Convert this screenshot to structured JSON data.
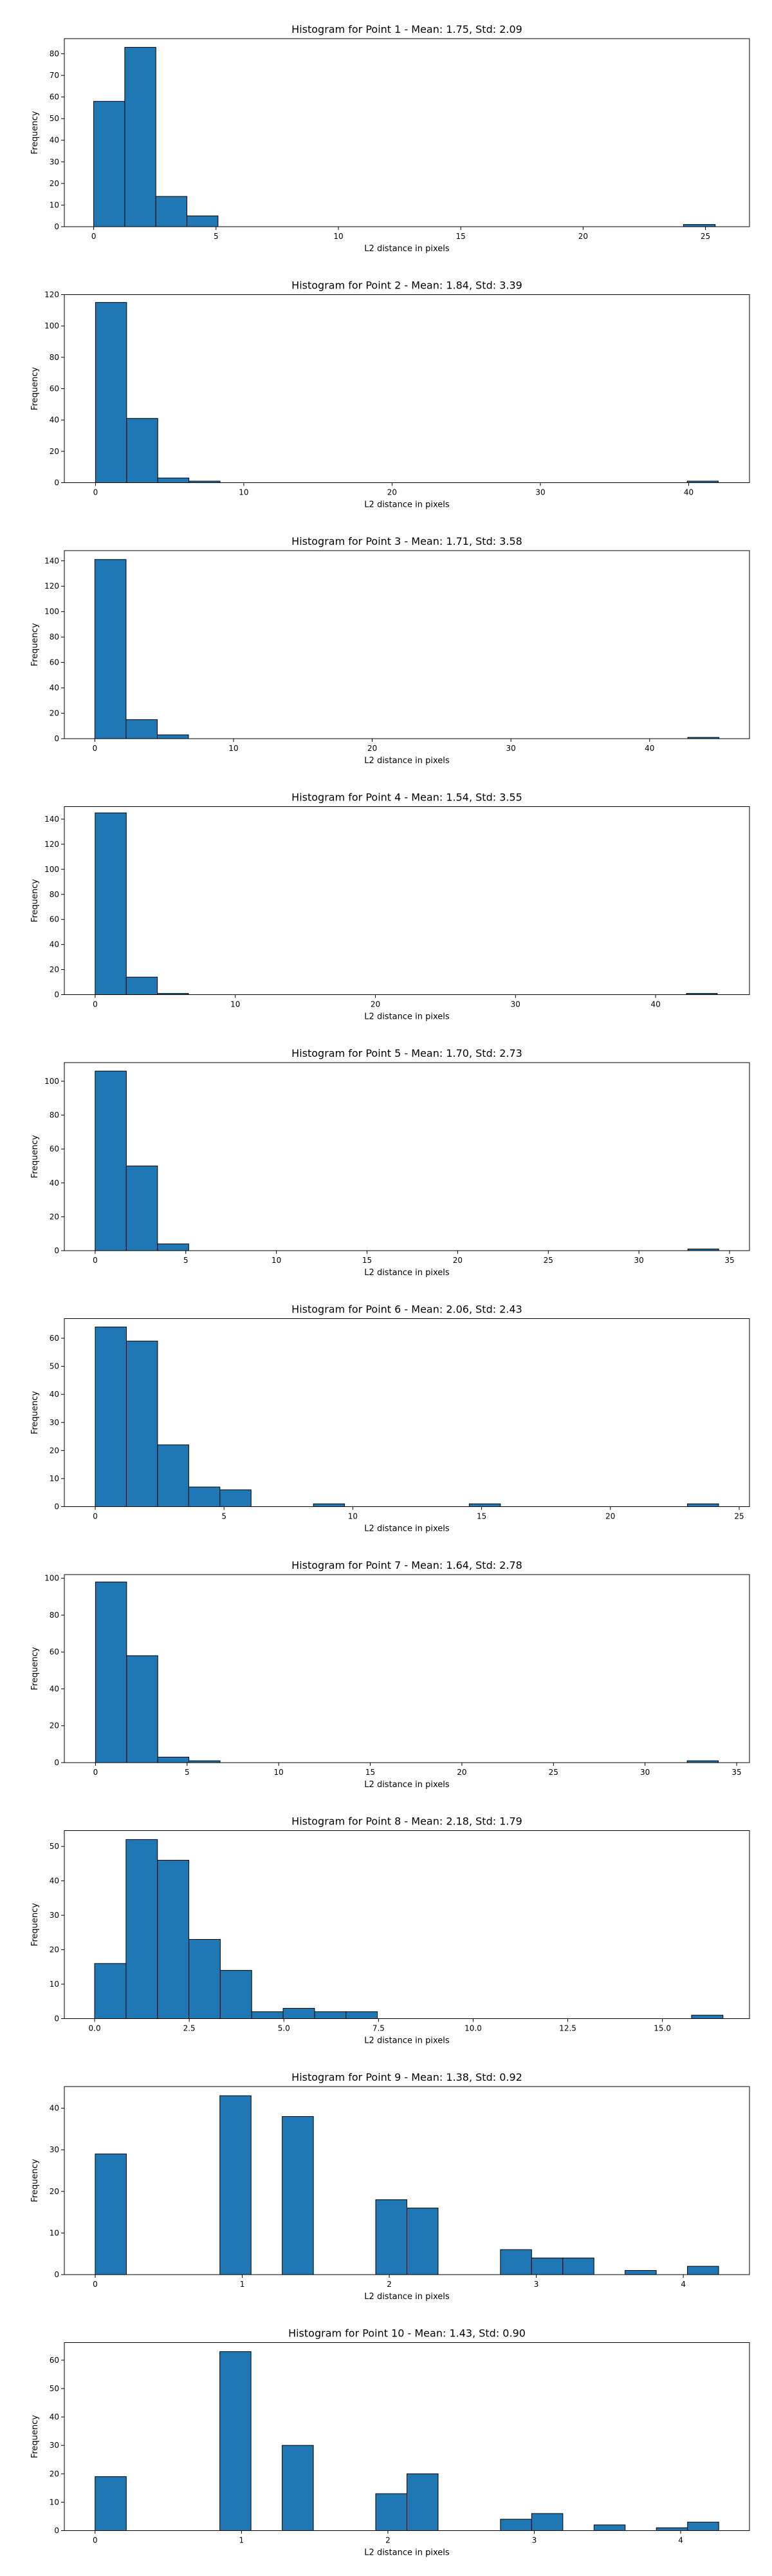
{
  "chart_data": [
    {
      "type": "bar",
      "title": "Histogram for Point 1 - Mean: 1.75, Std: 2.09",
      "xlabel": "L2 distance in pixels",
      "ylabel": "Frequency",
      "xlim": [
        -1.2,
        26.8
      ],
      "ylim": [
        0,
        87
      ],
      "xticks": [
        0,
        5,
        10,
        15,
        20,
        25
      ],
      "xtick_labels": [
        "0",
        "5",
        "10",
        "15",
        "20",
        "25"
      ],
      "yticks": [
        0,
        10,
        20,
        30,
        40,
        50,
        60,
        70,
        80
      ],
      "ytick_labels": [
        "0",
        "10",
        "20",
        "30",
        "40",
        "50",
        "60",
        "70",
        "80"
      ],
      "bins": [
        {
          "x0": 0.0,
          "x1": 1.27,
          "count": 58
        },
        {
          "x0": 1.27,
          "x1": 2.54,
          "count": 83
        },
        {
          "x0": 2.54,
          "x1": 3.81,
          "count": 14
        },
        {
          "x0": 3.81,
          "x1": 5.08,
          "count": 5
        },
        {
          "x0": 24.1,
          "x1": 25.4,
          "count": 1
        }
      ]
    },
    {
      "type": "bar",
      "title": "Histogram for Point 2 - Mean: 1.84, Std: 3.39",
      "xlabel": "L2 distance in pixels",
      "ylabel": "Frequency",
      "xlim": [
        -2.1,
        44.1
      ],
      "ylim": [
        0,
        120
      ],
      "xticks": [
        0,
        10,
        20,
        30,
        40
      ],
      "xtick_labels": [
        "0",
        "10",
        "20",
        "30",
        "40"
      ],
      "yticks": [
        0,
        20,
        40,
        60,
        80,
        100,
        120
      ],
      "ytick_labels": [
        "0",
        "20",
        "40",
        "60",
        "80",
        "100",
        "120"
      ],
      "bins": [
        {
          "x0": 0.0,
          "x1": 2.1,
          "count": 115
        },
        {
          "x0": 2.1,
          "x1": 4.2,
          "count": 41
        },
        {
          "x0": 4.2,
          "x1": 6.3,
          "count": 3
        },
        {
          "x0": 6.3,
          "x1": 8.4,
          "count": 1
        },
        {
          "x0": 39.9,
          "x1": 42.0,
          "count": 1
        }
      ]
    },
    {
      "type": "bar",
      "title": "Histogram for Point 3 - Mean: 1.71, Std: 3.58",
      "xlabel": "L2 distance in pixels",
      "ylabel": "Frequency",
      "xlim": [
        -2.2,
        47.2
      ],
      "ylim": [
        0,
        148
      ],
      "xticks": [
        0,
        10,
        20,
        30,
        40
      ],
      "xtick_labels": [
        "0",
        "10",
        "20",
        "30",
        "40"
      ],
      "yticks": [
        0,
        20,
        40,
        60,
        80,
        100,
        120,
        140
      ],
      "ytick_labels": [
        "0",
        "20",
        "40",
        "60",
        "80",
        "100",
        "120",
        "140"
      ],
      "bins": [
        {
          "x0": 0.0,
          "x1": 2.25,
          "count": 141
        },
        {
          "x0": 2.25,
          "x1": 4.5,
          "count": 15
        },
        {
          "x0": 4.5,
          "x1": 6.75,
          "count": 3
        },
        {
          "x0": 42.75,
          "x1": 45.0,
          "count": 1
        }
      ]
    },
    {
      "type": "bar",
      "title": "Histogram for Point 4 - Mean: 1.54, Std: 3.55",
      "xlabel": "L2 distance in pixels",
      "ylabel": "Frequency",
      "xlim": [
        -2.2,
        46.7
      ],
      "ylim": [
        0,
        150
      ],
      "xticks": [
        0,
        10,
        20,
        30,
        40
      ],
      "xtick_labels": [
        "0",
        "10",
        "20",
        "30",
        "40"
      ],
      "yticks": [
        0,
        20,
        40,
        60,
        80,
        100,
        120,
        140
      ],
      "ytick_labels": [
        "0",
        "20",
        "40",
        "60",
        "80",
        "100",
        "120",
        "140"
      ],
      "bins": [
        {
          "x0": 0.0,
          "x1": 2.22,
          "count": 145
        },
        {
          "x0": 2.22,
          "x1": 4.44,
          "count": 14
        },
        {
          "x0": 4.44,
          "x1": 6.66,
          "count": 1
        },
        {
          "x0": 42.2,
          "x1": 44.4,
          "count": 1
        }
      ]
    },
    {
      "type": "bar",
      "title": "Histogram for Point 5 - Mean: 1.70, Std: 2.73",
      "xlabel": "L2 distance in pixels",
      "ylabel": "Frequency",
      "xlim": [
        -1.7,
        36.1
      ],
      "ylim": [
        0,
        111
      ],
      "xticks": [
        0,
        5,
        10,
        15,
        20,
        25,
        30,
        35
      ],
      "xtick_labels": [
        "0",
        "5",
        "10",
        "15",
        "20",
        "25",
        "30",
        "35"
      ],
      "yticks": [
        0,
        20,
        40,
        60,
        80,
        100
      ],
      "ytick_labels": [
        "0",
        "20",
        "40",
        "60",
        "80",
        "100"
      ],
      "bins": [
        {
          "x0": 0.0,
          "x1": 1.72,
          "count": 106
        },
        {
          "x0": 1.72,
          "x1": 3.44,
          "count": 50
        },
        {
          "x0": 3.44,
          "x1": 5.16,
          "count": 4
        },
        {
          "x0": 32.7,
          "x1": 34.4,
          "count": 1
        }
      ]
    },
    {
      "type": "bar",
      "title": "Histogram for Point 6 - Mean: 2.06, Std: 2.43",
      "xlabel": "L2 distance in pixels",
      "ylabel": "Frequency",
      "xlim": [
        -1.2,
        25.4
      ],
      "ylim": [
        0,
        67
      ],
      "xticks": [
        0,
        5,
        10,
        15,
        20,
        25
      ],
      "xtick_labels": [
        "0",
        "5",
        "10",
        "15",
        "20",
        "25"
      ],
      "yticks": [
        0,
        10,
        20,
        30,
        40,
        50,
        60
      ],
      "ytick_labels": [
        "0",
        "10",
        "20",
        "30",
        "40",
        "50",
        "60"
      ],
      "bins": [
        {
          "x0": 0.0,
          "x1": 1.21,
          "count": 64
        },
        {
          "x0": 1.21,
          "x1": 2.42,
          "count": 59
        },
        {
          "x0": 2.42,
          "x1": 3.63,
          "count": 22
        },
        {
          "x0": 3.63,
          "x1": 4.84,
          "count": 7
        },
        {
          "x0": 4.84,
          "x1": 6.05,
          "count": 6
        },
        {
          "x0": 8.47,
          "x1": 9.68,
          "count": 1
        },
        {
          "x0": 14.52,
          "x1": 15.73,
          "count": 1
        },
        {
          "x0": 22.99,
          "x1": 24.2,
          "count": 1
        }
      ]
    },
    {
      "type": "bar",
      "title": "Histogram for Point 7 - Mean: 1.64, Std: 2.78",
      "xlabel": "L2 distance in pixels",
      "ylabel": "Frequency",
      "xlim": [
        -1.7,
        35.7
      ],
      "ylim": [
        0,
        102
      ],
      "xticks": [
        0,
        5,
        10,
        15,
        20,
        25,
        30,
        35
      ],
      "xtick_labels": [
        "0",
        "5",
        "10",
        "15",
        "20",
        "25",
        "30",
        "35"
      ],
      "yticks": [
        0,
        20,
        40,
        60,
        80,
        100
      ],
      "ytick_labels": [
        "0",
        "20",
        "40",
        "60",
        "80",
        "100"
      ],
      "bins": [
        {
          "x0": 0.0,
          "x1": 1.7,
          "count": 98
        },
        {
          "x0": 1.7,
          "x1": 3.4,
          "count": 58
        },
        {
          "x0": 3.4,
          "x1": 5.1,
          "count": 3
        },
        {
          "x0": 5.1,
          "x1": 6.8,
          "count": 1
        },
        {
          "x0": 32.3,
          "x1": 34.0,
          "count": 1
        }
      ]
    },
    {
      "type": "bar",
      "title": "Histogram for Point 8 - Mean: 2.18, Std: 1.79",
      "xlabel": "L2 distance in pixels",
      "ylabel": "Frequency",
      "xlim": [
        -0.8,
        17.3
      ],
      "ylim": [
        0,
        54.6
      ],
      "xticks": [
        0,
        2.5,
        5,
        7.5,
        10,
        12.5,
        15
      ],
      "xtick_labels": [
        "0.0",
        "2.5",
        "5.0",
        "7.5",
        "10.0",
        "12.5",
        "15.0"
      ],
      "yticks": [
        0,
        10,
        20,
        30,
        40,
        50
      ],
      "ytick_labels": [
        "0",
        "10",
        "20",
        "30",
        "40",
        "50"
      ],
      "bins": [
        {
          "x0": 0.0,
          "x1": 0.83,
          "count": 16
        },
        {
          "x0": 0.83,
          "x1": 1.66,
          "count": 52
        },
        {
          "x0": 1.66,
          "x1": 2.49,
          "count": 46
        },
        {
          "x0": 2.49,
          "x1": 3.32,
          "count": 23
        },
        {
          "x0": 3.32,
          "x1": 4.15,
          "count": 14
        },
        {
          "x0": 4.15,
          "x1": 4.98,
          "count": 2
        },
        {
          "x0": 4.98,
          "x1": 5.81,
          "count": 3
        },
        {
          "x0": 5.81,
          "x1": 6.64,
          "count": 2
        },
        {
          "x0": 6.64,
          "x1": 7.47,
          "count": 2
        },
        {
          "x0": 15.77,
          "x1": 16.6,
          "count": 1
        }
      ]
    },
    {
      "type": "bar",
      "title": "Histogram for Point 9 - Mean: 1.38, Std: 0.92",
      "xlabel": "L2 distance in pixels",
      "ylabel": "Frequency",
      "xlim": [
        -0.21,
        4.45
      ],
      "ylim": [
        0,
        45.2
      ],
      "xticks": [
        0,
        1,
        2,
        3,
        4
      ],
      "xtick_labels": [
        "0",
        "1",
        "2",
        "3",
        "4"
      ],
      "yticks": [
        0,
        10,
        20,
        30,
        40
      ],
      "ytick_labels": [
        "0",
        "10",
        "20",
        "30",
        "40"
      ],
      "bins": [
        {
          "x0": 0.0,
          "x1": 0.212,
          "count": 29
        },
        {
          "x0": 0.848,
          "x1": 1.06,
          "count": 43
        },
        {
          "x0": 1.272,
          "x1": 1.484,
          "count": 38
        },
        {
          "x0": 1.908,
          "x1": 2.12,
          "count": 18
        },
        {
          "x0": 2.12,
          "x1": 2.332,
          "count": 16
        },
        {
          "x0": 2.756,
          "x1": 2.968,
          "count": 6
        },
        {
          "x0": 2.968,
          "x1": 3.18,
          "count": 4
        },
        {
          "x0": 3.18,
          "x1": 3.392,
          "count": 4
        },
        {
          "x0": 3.604,
          "x1": 3.816,
          "count": 1
        },
        {
          "x0": 4.028,
          "x1": 4.24,
          "count": 2
        }
      ]
    },
    {
      "type": "bar",
      "title": "Histogram for Point 10 - Mean: 1.43, Std: 0.90",
      "xlabel": "L2 distance in pixels",
      "ylabel": "Frequency",
      "xlim": [
        -0.21,
        4.47
      ],
      "ylim": [
        0,
        66.2
      ],
      "xticks": [
        0,
        1,
        2,
        3,
        4
      ],
      "xtick_labels": [
        "0",
        "1",
        "2",
        "3",
        "4"
      ],
      "yticks": [
        0,
        10,
        20,
        30,
        40,
        50,
        60
      ],
      "ytick_labels": [
        "0",
        "10",
        "20",
        "30",
        "40",
        "50",
        "60"
      ],
      "bins": [
        {
          "x0": 0.0,
          "x1": 0.213,
          "count": 19
        },
        {
          "x0": 0.852,
          "x1": 1.065,
          "count": 63
        },
        {
          "x0": 1.278,
          "x1": 1.491,
          "count": 30
        },
        {
          "x0": 1.917,
          "x1": 2.13,
          "count": 13
        },
        {
          "x0": 2.13,
          "x1": 2.343,
          "count": 20
        },
        {
          "x0": 2.769,
          "x1": 2.982,
          "count": 4
        },
        {
          "x0": 2.982,
          "x1": 3.195,
          "count": 6
        },
        {
          "x0": 3.408,
          "x1": 3.621,
          "count": 2
        },
        {
          "x0": 3.834,
          "x1": 4.047,
          "count": 1
        },
        {
          "x0": 4.047,
          "x1": 4.26,
          "count": 3
        }
      ]
    }
  ],
  "colors": {
    "bar_fill": "#1f77b4",
    "bar_edge": "#000000",
    "axis": "#000000"
  }
}
